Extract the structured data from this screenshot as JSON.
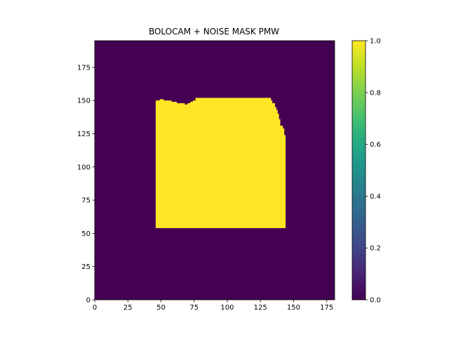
{
  "chart_data": {
    "type": "heatmap",
    "title": "BOLOCAM + NOISE MASK PMW",
    "xlabel": "",
    "ylabel": "",
    "xlim": [
      0,
      181
    ],
    "ylim": [
      0,
      195
    ],
    "x_ticks": [
      0,
      25,
      50,
      75,
      100,
      125,
      150,
      175
    ],
    "y_ticks": [
      0,
      25,
      50,
      75,
      100,
      125,
      150,
      175
    ],
    "colormap": "viridis",
    "color_low": "#440154",
    "color_high": "#fde725",
    "value_range": [
      0,
      1
    ],
    "background_value": 0,
    "mask_value": 1,
    "mask_region": {
      "x_range": [
        46,
        144
      ],
      "y_bottom": 54,
      "top_edge": [
        [
          46,
          150
        ],
        [
          49,
          151
        ],
        [
          52,
          150
        ],
        [
          58,
          149
        ],
        [
          62,
          148
        ],
        [
          68,
          147
        ],
        [
          70,
          148
        ],
        [
          72,
          149
        ],
        [
          74,
          150
        ],
        [
          76,
          152
        ],
        [
          131,
          152
        ],
        [
          133,
          150
        ],
        [
          134,
          148
        ],
        [
          136,
          145
        ],
        [
          137,
          143
        ],
        [
          138,
          140
        ],
        [
          139,
          136
        ],
        [
          140,
          131
        ],
        [
          142,
          129
        ],
        [
          143,
          124
        ],
        [
          144,
          119
        ]
      ]
    },
    "colorbar": {
      "range": [
        0.0,
        1.0
      ],
      "ticks": [
        "0.0",
        "0.2",
        "0.4",
        "0.6",
        "0.8",
        "1.0"
      ]
    }
  }
}
